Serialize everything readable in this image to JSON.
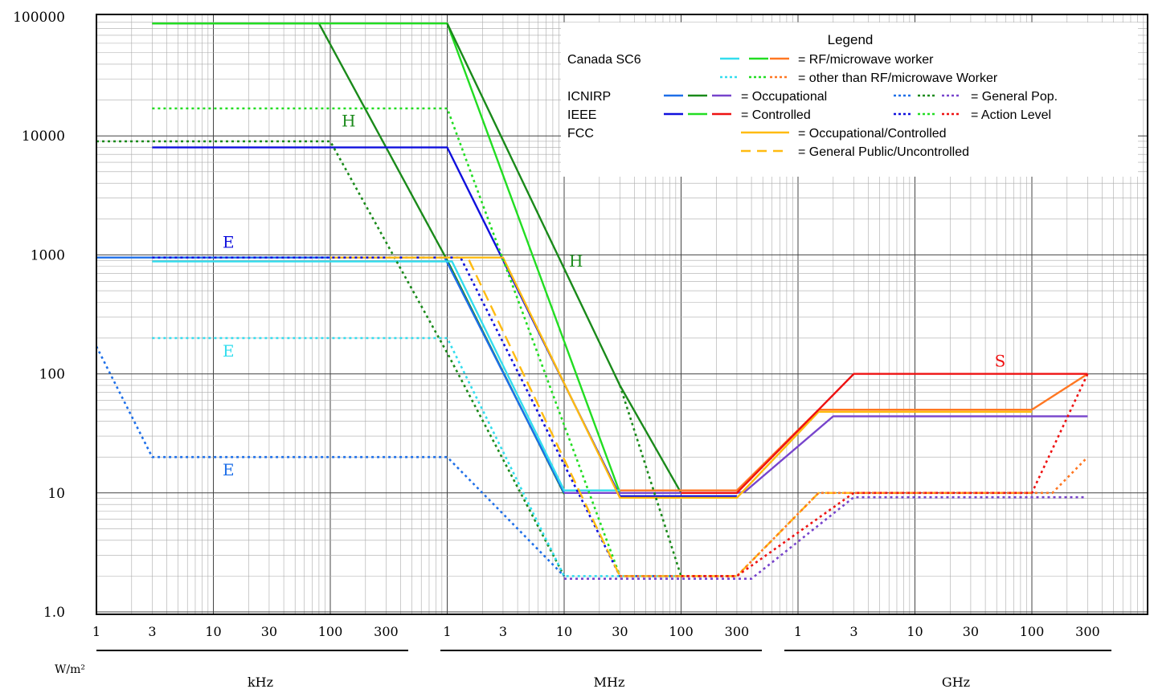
{
  "chart_data": {
    "type": "line",
    "title": "",
    "ylabel": "W/m²",
    "xlabel": "",
    "y_scale": "log",
    "x_scale": "log",
    "ylim": [
      1,
      100000
    ],
    "y_ticks": [
      "1.0",
      "10",
      "100",
      "1000",
      "10000",
      "100000"
    ],
    "x_tick_labels": [
      "1",
      "3",
      "10",
      "30",
      "100",
      "300",
      "1",
      "3",
      "10",
      "30",
      "100",
      "300",
      "1",
      "3",
      "10",
      "30",
      "100",
      "300"
    ],
    "x_ticks_hz": [
      1000.0,
      3000.0,
      10000.0,
      30000.0,
      100000.0,
      300000.0,
      1000000.0,
      3000000.0,
      10000000.0,
      30000000.0,
      100000000.0,
      300000000.0,
      1000000000.0,
      3000000000.0,
      10000000000.0,
      30000000000.0,
      100000000000.0,
      300000000000.0
    ],
    "x_unit_groups": [
      {
        "label": "kHz",
        "from": 1000.0,
        "to": 300000.0
      },
      {
        "label": "MHz",
        "from": 1000000.0,
        "to": 300000000.0
      },
      {
        "label": "GHz",
        "from": 1000000000.0,
        "to": 300000000000.0
      }
    ],
    "grid": true,
    "legend": {
      "title": "Legend",
      "rows": [
        {
          "org": "Canada SC6",
          "text": "= RF/microwave worker",
          "swatches": [
            {
              "color": "#33DDEE",
              "dash": "dash"
            },
            {
              "color": "#22DD22",
              "dash": "dash"
            },
            {
              "color": "#FF7722",
              "dash": "dash"
            }
          ]
        },
        {
          "org": "",
          "text": "= other than RF/microwave Worker",
          "swatches": [
            {
              "color": "#33DDEE",
              "dash": "dot"
            },
            {
              "color": "#22DD22",
              "dash": "dot"
            },
            {
              "color": "#FF7722",
              "dash": "dot"
            }
          ]
        },
        {
          "org": "ICNIRP",
          "text": "= Occupational",
          "swatches": [
            {
              "color": "#1E6FE8",
              "dash": "dash"
            },
            {
              "color": "#1A8A1A",
              "dash": "dash"
            },
            {
              "color": "#7744CC",
              "dash": "dash"
            }
          ]
        },
        {
          "org": "",
          "text": "= General Pop.",
          "swatches": [
            {
              "color": "#1E6FE8",
              "dash": "dot"
            },
            {
              "color": "#1A8A1A",
              "dash": "dot"
            },
            {
              "color": "#7744CC",
              "dash": "dot"
            }
          ]
        },
        {
          "org": "IEEE",
          "text": "= Controlled",
          "swatches": [
            {
              "color": "#1010DD",
              "dash": "dash"
            },
            {
              "color": "#22DD22",
              "dash": "dash"
            },
            {
              "color": "#EE1111",
              "dash": "dash"
            }
          ]
        },
        {
          "org": "",
          "text": "= Action Level",
          "swatches": [
            {
              "color": "#1010DD",
              "dash": "dot"
            },
            {
              "color": "#22DD22",
              "dash": "dot"
            },
            {
              "color": "#EE1111",
              "dash": "dot"
            }
          ]
        },
        {
          "org": "FCC",
          "text": "= Occupational/Controlled",
          "swatches": [
            {
              "color": "#FFBB11",
              "dash": "solid"
            }
          ]
        },
        {
          "org": "",
          "text": "= General Public/Uncontrolled",
          "swatches": [
            {
              "color": "#FFBB11",
              "dash": "dash"
            }
          ]
        }
      ]
    },
    "annotations": [
      {
        "text": "H",
        "color": "#1A8A1A",
        "x_hz": 125000.0,
        "y": 12000
      },
      {
        "text": "H",
        "color": "#1A8A1A",
        "x_hz": 11000000.0,
        "y": 800
      },
      {
        "text": "E",
        "color": "#1010DD",
        "x_hz": 12000.0,
        "y": 1150
      },
      {
        "text": "E",
        "color": "#33DDEE",
        "x_hz": 12000.0,
        "y": 140
      },
      {
        "text": "E",
        "color": "#1E6FE8",
        "x_hz": 12000.0,
        "y": 14
      },
      {
        "text": "S",
        "color": "#EE1111",
        "x_hz": 48000000000.0,
        "y": 115
      }
    ],
    "series": [
      {
        "color": "#1A8A1A",
        "dash": "solid",
        "points": [
          [
            3000.0,
            88000
          ],
          [
            80000.0,
            88000
          ],
          [
            1000000.0,
            900
          ],
          [
            10000000.0,
            9.8
          ]
        ]
      },
      {
        "color": "#22DD22",
        "dash": "solid",
        "points": [
          [
            3000.0,
            88000
          ],
          [
            1000000.0,
            88000
          ],
          [
            30000000.0,
            10
          ]
        ]
      },
      {
        "color": "#1A8A1A",
        "dash": "solid",
        "points": [
          [
            1000000.0,
            88000
          ],
          [
            30000000.0,
            80
          ],
          [
            100000000.0,
            10
          ]
        ]
      },
      {
        "color": "#1010DD",
        "dash": "solid",
        "points": [
          [
            3000.0,
            8000
          ],
          [
            1000000.0,
            8000
          ],
          [
            30000000.0,
            9.4
          ],
          [
            300000000.0,
            9.4
          ]
        ]
      },
      {
        "color": "#1E6FE8",
        "dash": "solid",
        "points": [
          [
            1000.0,
            950
          ],
          [
            950000.0,
            950
          ],
          [
            10000000.0,
            10
          ]
        ]
      },
      {
        "color": "#33DDEE",
        "dash": "solid",
        "points": [
          [
            3000.0,
            880
          ],
          [
            1100000.0,
            880
          ],
          [
            10000000.0,
            10.5
          ],
          [
            30000000.0,
            10.5
          ]
        ]
      },
      {
        "color": "#7744CC",
        "dash": "solid",
        "points": [
          [
            10000000.0,
            10
          ],
          [
            300000000.0,
            10
          ],
          [
            350000000.0,
            10.2
          ],
          [
            2000000000.0,
            44
          ],
          [
            160000000000.0,
            44
          ],
          [
            300000000000.0,
            44
          ]
        ]
      },
      {
        "color": "#FFBB11",
        "dash": "solid",
        "points": [
          [
            100000.0,
            950
          ],
          [
            3000000.0,
            950
          ],
          [
            30000000.0,
            9.1
          ],
          [
            300000000.0,
            9.1
          ],
          [
            1500000000.0,
            48
          ],
          [
            100000000000.0,
            48
          ]
        ]
      },
      {
        "color": "#FF7722",
        "dash": "solid",
        "points": [
          [
            30000000.0,
            10.5
          ],
          [
            300000000.0,
            10.5
          ],
          [
            1500000000.0,
            50
          ],
          [
            100000000000.0,
            50
          ],
          [
            300000000000.0,
            100
          ]
        ]
      },
      {
        "color": "#EE1111",
        "dash": "solid",
        "points": [
          [
            100000000.0,
            10
          ],
          [
            300000000.0,
            10
          ],
          [
            3000000000.0,
            100
          ],
          [
            300000000000.0,
            100
          ]
        ]
      },
      {
        "color": "#22DD22",
        "dash": "dot",
        "points": [
          [
            3000.0,
            17000
          ],
          [
            1000000.0,
            17000
          ],
          [
            30000000.0,
            2
          ]
        ]
      },
      {
        "color": "#1A8A1A",
        "dash": "dot",
        "points": [
          [
            1000.0,
            9000
          ],
          [
            100000.0,
            9000
          ],
          [
            1000000.0,
            150
          ],
          [
            10000000.0,
            2
          ]
        ]
      },
      {
        "color": "#1A8A1A",
        "dash": "dot",
        "points": [
          [
            30000000.0,
            80
          ],
          [
            100000000.0,
            2
          ]
        ]
      },
      {
        "color": "#33DDEE",
        "dash": "dot",
        "points": [
          [
            3000.0,
            200
          ],
          [
            1000000.0,
            200
          ],
          [
            10000000.0,
            2
          ],
          [
            100000000.0,
            2
          ]
        ]
      },
      {
        "color": "#1E6FE8",
        "dash": "dot",
        "points": [
          [
            1000.0,
            170
          ],
          [
            3000.0,
            20
          ],
          [
            1000000.0,
            20
          ],
          [
            10000000.0,
            2
          ]
        ]
      },
      {
        "color": "#1010DD",
        "dash": "dot",
        "points": [
          [
            3000.0,
            950
          ],
          [
            1300000.0,
            950
          ],
          [
            30000000.0,
            2
          ],
          [
            300000000.0,
            2
          ]
        ]
      },
      {
        "color": "#7744CC",
        "dash": "dot",
        "points": [
          [
            10000000.0,
            1.9
          ],
          [
            400000000.0,
            1.9
          ],
          [
            3000000000.0,
            9.2
          ],
          [
            280000000000.0,
            9.2
          ]
        ]
      },
      {
        "color": "#FFBB11",
        "dash": "dash",
        "points": [
          [
            300000.0,
            950
          ],
          [
            1500000.0,
            950
          ],
          [
            30000000.0,
            2
          ],
          [
            300000000.0,
            2
          ],
          [
            1500000000.0,
            10
          ],
          [
            100000000000.0,
            10
          ]
        ]
      },
      {
        "color": "#FF7722",
        "dash": "dot",
        "points": [
          [
            30000000.0,
            2
          ],
          [
            300000000.0,
            2
          ],
          [
            1500000000.0,
            10
          ],
          [
            150000000000.0,
            10
          ],
          [
            300000000000.0,
            20
          ]
        ]
      },
      {
        "color": "#EE1111",
        "dash": "dot",
        "points": [
          [
            100000000.0,
            2
          ],
          [
            300000000.0,
            2
          ],
          [
            3000000000.0,
            10
          ],
          [
            100000000000.0,
            10
          ],
          [
            300000000000.0,
            100
          ]
        ]
      }
    ]
  }
}
